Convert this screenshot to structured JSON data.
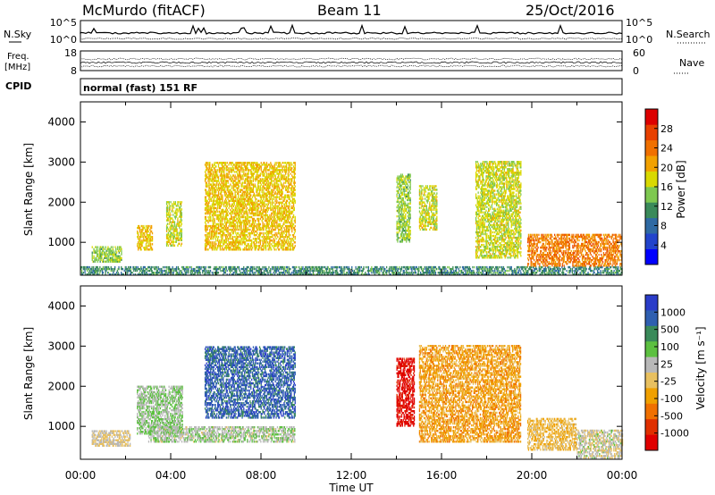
{
  "header": {
    "station": "McMurdo (fitACF)",
    "beam": "Beam 11",
    "date": "25/Oct/2016"
  },
  "left_labels": {
    "nsky": "N.Sky",
    "freq_line1": "Freq.",
    "freq_line2": "[MHz]",
    "cpid": "CPID"
  },
  "right_labels": {
    "nsearch": "N.Search",
    "nave": "Nave"
  },
  "noise_panel": {
    "left_ticks": [
      "10^5",
      "10^0"
    ],
    "right_ticks": [
      "10^5",
      "10^0"
    ]
  },
  "freq_panel": {
    "left_ticks": [
      "18",
      "8"
    ],
    "right_ticks": [
      "60",
      "0"
    ]
  },
  "cpid_text": "normal (fast) 151 RF",
  "x_axis": {
    "ticks": [
      "00:00",
      "04:00",
      "08:00",
      "12:00",
      "16:00",
      "20:00",
      "00:00"
    ],
    "label": "Time UT"
  },
  "power_panel": {
    "ylabel": "Slant Range [km]",
    "yticks": [
      "1000",
      "2000",
      "3000",
      "4000"
    ],
    "colorbar_label": "Power [dB]",
    "colorbar_ticks": [
      "4",
      "8",
      "12",
      "16",
      "20",
      "24",
      "28"
    ],
    "colors": [
      "#0000ff",
      "#2244cc",
      "#2f6aa3",
      "#3a8a5a",
      "#7ec850",
      "#d9d900",
      "#f2a100",
      "#f07000",
      "#e84000",
      "#dd0000"
    ]
  },
  "velocity_panel": {
    "ylabel": "Slant Range [km]",
    "yticks": [
      "1000",
      "2000",
      "3000",
      "4000"
    ],
    "colorbar_label": "Velocity [m s⁻¹]",
    "colorbar_ticks": [
      "1000",
      "500",
      "100",
      "25",
      "-25",
      "-100",
      "-500",
      "-1000"
    ],
    "colors": [
      "#2a3cc8",
      "#2f5fb0",
      "#3a8a5a",
      "#5cc040",
      "#b8b8b8",
      "#e8c060",
      "#f0a000",
      "#f07000",
      "#e03000",
      "#e00000"
    ]
  },
  "chart_data": [
    {
      "type": "heatmap",
      "title": "Power",
      "xlabel": "Time UT",
      "ylabel": "Slant Range [km]",
      "xlim": [
        "00:00",
        "24:00"
      ],
      "ylim": [
        180,
        4500
      ],
      "colorbar": {
        "label": "Power [dB]",
        "range": [
          0,
          30
        ]
      },
      "regions": [
        {
          "t_start": 0.0,
          "t_end": 24.0,
          "range_start": 180,
          "range_end": 400,
          "value": 10
        },
        {
          "t_start": 0.5,
          "t_end": 1.8,
          "range_start": 500,
          "range_end": 900,
          "value": 14
        },
        {
          "t_start": 2.5,
          "t_end": 3.2,
          "range_start": 800,
          "range_end": 1400,
          "value": 18
        },
        {
          "t_start": 3.8,
          "t_end": 4.5,
          "range_start": 900,
          "range_end": 2000,
          "value": 16
        },
        {
          "t_start": 5.5,
          "t_end": 9.5,
          "range_start": 800,
          "range_end": 3000,
          "value": 18
        },
        {
          "t_start": 14.0,
          "t_end": 14.6,
          "range_start": 1000,
          "range_end": 2700,
          "value": 14
        },
        {
          "t_start": 15.0,
          "t_end": 15.8,
          "range_start": 1300,
          "range_end": 2400,
          "value": 16
        },
        {
          "t_start": 17.5,
          "t_end": 19.5,
          "range_start": 600,
          "range_end": 3000,
          "value": 16
        },
        {
          "t_start": 19.8,
          "t_end": 24.0,
          "range_start": 400,
          "range_end": 1200,
          "value": 22
        }
      ]
    },
    {
      "type": "heatmap",
      "title": "Velocity",
      "xlabel": "Time UT",
      "ylabel": "Slant Range [km]",
      "xlim": [
        "00:00",
        "24:00"
      ],
      "ylim": [
        180,
        4500
      ],
      "colorbar": {
        "label": "Velocity [m s⁻¹]",
        "range": [
          -1000,
          1000
        ]
      },
      "regions": [
        {
          "t_start": 0.5,
          "t_end": 2.2,
          "range_start": 500,
          "range_end": 900,
          "value": 0
        },
        {
          "t_start": 2.5,
          "t_end": 4.5,
          "range_start": 800,
          "range_end": 2000,
          "value": 200
        },
        {
          "t_start": 5.5,
          "t_end": 9.5,
          "range_start": 1200,
          "range_end": 3000,
          "value": 700
        },
        {
          "t_start": 3.0,
          "t_end": 9.5,
          "range_start": 600,
          "range_end": 1000,
          "value": 150
        },
        {
          "t_start": 14.0,
          "t_end": 14.8,
          "range_start": 1000,
          "range_end": 2700,
          "value": -900
        },
        {
          "t_start": 15.0,
          "t_end": 19.5,
          "range_start": 600,
          "range_end": 3000,
          "value": -300
        },
        {
          "t_start": 19.8,
          "t_end": 22.0,
          "range_start": 400,
          "range_end": 1200,
          "value": -150
        },
        {
          "t_start": 22.0,
          "t_end": 24.0,
          "range_start": 200,
          "range_end": 900,
          "value": 50
        }
      ]
    }
  ]
}
